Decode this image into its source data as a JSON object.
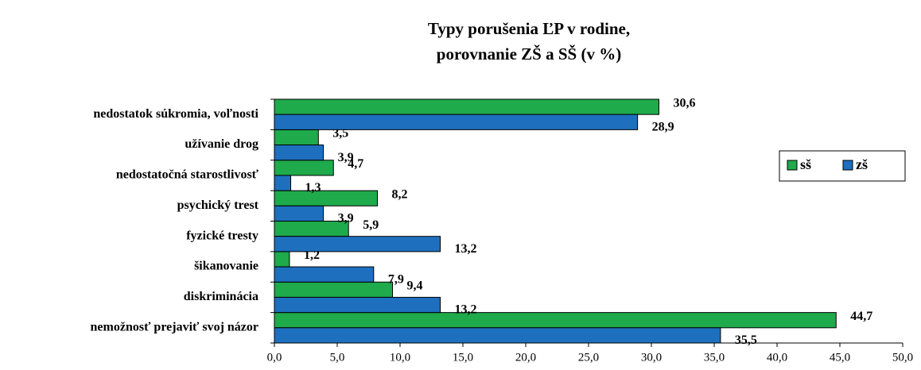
{
  "chart_data": {
    "type": "bar",
    "orientation": "horizontal",
    "title": [
      "Typy porušenia ĽP v rodine,",
      "porovnanie  ZŠ a SŠ (v %)"
    ],
    "categories": [
      "nedostatok súkromia, voľnosti",
      "užívanie drog",
      "nedostatočná starostlivosť",
      "psychický trest",
      "fyzické tresty",
      "šikanovanie",
      "diskriminácia",
      "nemožnosť prejaviť svoj názor"
    ],
    "series": [
      {
        "name": "sš",
        "color": "#1faa4b",
        "values": [
          30.6,
          3.5,
          4.7,
          8.2,
          5.9,
          1.2,
          9.4,
          44.7
        ],
        "value_labels": [
          "30,6",
          "3,5",
          "4,7",
          "8,2",
          "5,9",
          "1,2",
          "9,4",
          "44,7"
        ]
      },
      {
        "name": "zš",
        "color": "#1e70bf",
        "values": [
          28.9,
          3.9,
          1.3,
          3.9,
          13.2,
          7.9,
          13.2,
          35.5
        ],
        "value_labels": [
          "28,9",
          "3,9",
          "1,3",
          "3,9",
          "13,2",
          "7,9",
          "13,2",
          "35,5"
        ]
      }
    ],
    "xlim": [
      0,
      50
    ],
    "xticks": [
      {
        "value": 0,
        "label": "0,0"
      },
      {
        "value": 5,
        "label": "5,0"
      },
      {
        "value": 10,
        "label": "10,0"
      },
      {
        "value": 15,
        "label": "15,0"
      },
      {
        "value": 20,
        "label": "20,0"
      },
      {
        "value": 25,
        "label": "25,0"
      },
      {
        "value": 30,
        "label": "30,0"
      },
      {
        "value": 35,
        "label": "35,0"
      },
      {
        "value": 40,
        "label": "40,0"
      },
      {
        "value": 45,
        "label": "45,0"
      },
      {
        "value": 50,
        "label": "50,0"
      }
    ],
    "grid": false,
    "legend": "right"
  }
}
